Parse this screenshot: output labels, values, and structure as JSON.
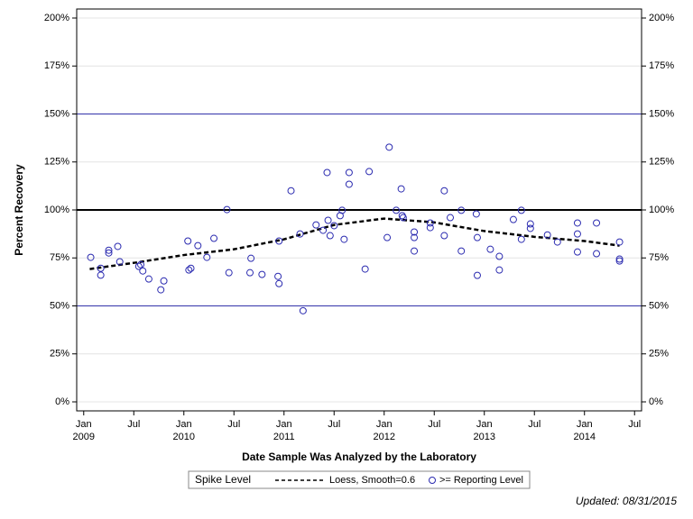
{
  "chart_data": {
    "type": "scatter",
    "x_label": "Date Sample Was Analyzed by the Laboratory",
    "y_label": "Percent Recovery",
    "legend_title": "Spike Level",
    "footer": "Updated: 08/31/2015",
    "xlim": [
      2008.93,
      2014.57
    ],
    "ylim": [
      -4.7,
      204.7
    ],
    "xticks": [
      {
        "value": 2009.0,
        "label": "Jan"
      },
      {
        "value": 2009.5,
        "label": "Jul"
      },
      {
        "value": 2010.0,
        "label": "Jan"
      },
      {
        "value": 2010.5,
        "label": "Jul"
      },
      {
        "value": 2011.0,
        "label": "Jan"
      },
      {
        "value": 2011.5,
        "label": "Jul"
      },
      {
        "value": 2012.0,
        "label": "Jan"
      },
      {
        "value": 2012.5,
        "label": "Jul"
      },
      {
        "value": 2013.0,
        "label": "Jan"
      },
      {
        "value": 2013.5,
        "label": "Jul"
      },
      {
        "value": 2014.0,
        "label": "Jan"
      },
      {
        "value": 2014.5,
        "label": "Jul"
      }
    ],
    "xticks_secondary": [
      {
        "value": 2009.0,
        "label": "2009"
      },
      {
        "value": 2010.0,
        "label": "2010"
      },
      {
        "value": 2011.0,
        "label": "2011"
      },
      {
        "value": 2012.0,
        "label": "2012"
      },
      {
        "value": 2013.0,
        "label": "2013"
      },
      {
        "value": 2014.0,
        "label": "2014"
      }
    ],
    "yticks": [
      {
        "value": 0,
        "label": "0%"
      },
      {
        "value": 25,
        "label": "25%"
      },
      {
        "value": 50,
        "label": "50%"
      },
      {
        "value": 75,
        "label": "75%"
      },
      {
        "value": 100,
        "label": "100%"
      },
      {
        "value": 125,
        "label": "125%"
      },
      {
        "value": 150,
        "label": "150%"
      },
      {
        "value": 175,
        "label": "175%"
      },
      {
        "value": 200,
        "label": "200%"
      }
    ],
    "grid": true,
    "reference_lines": [
      {
        "value": 50,
        "color": "#3333aa",
        "width": 1
      },
      {
        "value": 100,
        "color": "#000000",
        "width": 2
      },
      {
        "value": 150,
        "color": "#3333aa",
        "width": 1
      }
    ],
    "series": [
      {
        "name": "Loess, Smooth=0.6",
        "kind": "line",
        "color": "#000000",
        "x": [
          2009.06,
          2009.51,
          2010.0,
          2010.5,
          2011.0,
          2011.5,
          2012.0,
          2012.49,
          2013.0,
          2013.5,
          2014.0,
          2014.35
        ],
        "values": [
          69.2,
          72.5,
          76.5,
          79.5,
          84.7,
          92.2,
          95.5,
          93.6,
          89.0,
          86.0,
          83.8,
          81.4
        ]
      },
      {
        "name": ">= Reporting Level",
        "kind": "points",
        "color": "#2b2bb0",
        "x": [
          2009.07,
          2009.17,
          2009.17,
          2009.25,
          2009.25,
          2009.34,
          2009.36,
          2009.55,
          2009.57,
          2009.59,
          2009.65,
          2009.77,
          2009.8,
          2010.04,
          2010.05,
          2010.07,
          2010.14,
          2010.23,
          2010.3,
          2010.43,
          2010.45,
          2010.66,
          2010.67,
          2010.78,
          2010.94,
          2010.95,
          2010.95,
          2011.07,
          2011.16,
          2011.19,
          2011.32,
          2011.39,
          2011.43,
          2011.44,
          2011.46,
          2011.5,
          2011.56,
          2011.58,
          2011.6,
          2011.65,
          2011.65,
          2011.81,
          2011.85,
          2012.03,
          2012.05,
          2012.12,
          2012.17,
          2012.18,
          2012.19,
          2012.3,
          2012.3,
          2012.3,
          2012.46,
          2012.46,
          2012.6,
          2012.6,
          2012.66,
          2012.77,
          2012.77,
          2012.92,
          2012.93,
          2012.93,
          2013.06,
          2013.15,
          2013.15,
          2013.29,
          2013.37,
          2013.37,
          2013.46,
          2013.46,
          2013.63,
          2013.73,
          2013.93,
          2013.93,
          2013.93,
          2014.12,
          2014.12,
          2014.35,
          2014.35,
          2014.35
        ],
        "values": [
          75.3,
          69.6,
          66.0,
          79.0,
          77.6,
          81.0,
          73.0,
          70.6,
          71.5,
          68.2,
          64.0,
          58.4,
          63.0,
          83.8,
          68.7,
          69.6,
          81.4,
          75.3,
          85.2,
          100.2,
          67.3,
          67.3,
          74.8,
          66.4,
          65.4,
          83.8,
          61.6,
          110.0,
          87.5,
          47.5,
          92.2,
          89.4,
          119.5,
          94.6,
          86.6,
          91.8,
          97.0,
          99.8,
          84.7,
          119.5,
          113.4,
          69.2,
          120.0,
          85.6,
          132.7,
          99.8,
          111.0,
          97.0,
          96.0,
          88.5,
          85.6,
          78.6,
          93.2,
          90.8,
          110.0,
          86.6,
          96.0,
          99.8,
          78.6,
          97.9,
          85.6,
          65.9,
          79.5,
          75.8,
          68.7,
          95.0,
          99.8,
          84.7,
          92.7,
          90.4,
          87.0,
          83.3,
          93.2,
          87.5,
          78.1,
          93.2,
          77.2,
          83.3,
          74.4,
          73.4
        ]
      }
    ]
  }
}
